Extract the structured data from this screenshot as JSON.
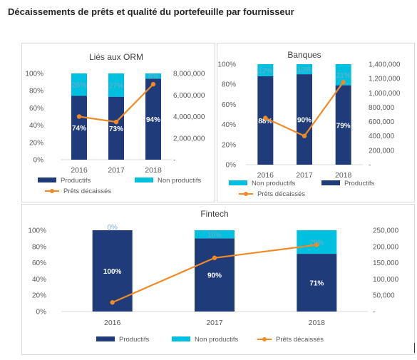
{
  "page_title": "Décaissements de prêts et qualité du portefeuille par fournisseur",
  "colors": {
    "productive": "#1f3b7a",
    "non_productive": "#00c0e0",
    "line": "#f08a24",
    "axis_text": "#595959"
  },
  "chart_data": [
    {
      "type": "bar",
      "title": "Liés aux ORM",
      "categories": [
        "2016",
        "2017",
        "2018"
      ],
      "y_left_ticks": [
        "100%",
        "80%",
        "60%",
        "40%",
        "20%",
        "0%"
      ],
      "y_right_ticks": [
        "8,000,000",
        "6,000,000",
        "4,000,000",
        "2,000,000",
        "-"
      ],
      "y_right_range": [
        0,
        8000000
      ],
      "series": [
        {
          "name": "Productifs",
          "kind": "stacked-bar",
          "values": [
            74,
            73,
            94
          ],
          "labels": [
            "74%",
            "73%",
            "94%"
          ]
        },
        {
          "name": "Non productifs",
          "kind": "stacked-bar",
          "values": [
            26,
            27,
            6
          ],
          "labels": [
            "26%",
            "27%",
            "6%"
          ]
        },
        {
          "name": "Prêts décaissés",
          "kind": "line",
          "values": [
            4000000,
            3500000,
            7000000
          ]
        }
      ],
      "legend": [
        "Productifs",
        "Non productifs",
        "Prêts décaissés"
      ]
    },
    {
      "type": "bar",
      "title": "Banques",
      "categories": [
        "2016",
        "2017",
        "2018"
      ],
      "y_left_ticks": [
        "100%",
        "80%",
        "60%",
        "40%",
        "20%",
        "0%"
      ],
      "y_right_ticks": [
        "1,400,000",
        "1,200,000",
        "1,000,000",
        "800,000",
        "600,000",
        "400,000",
        "200,000",
        "-"
      ],
      "y_right_range": [
        0,
        1400000
      ],
      "series": [
        {
          "name": "Productifs",
          "kind": "stacked-bar",
          "values": [
            88,
            90,
            79
          ],
          "labels": [
            "88%",
            "90%",
            "79%"
          ]
        },
        {
          "name": "Non productifs",
          "kind": "stacked-bar",
          "values": [
            12,
            10,
            21
          ],
          "labels": [
            "12%",
            "10%",
            "21%"
          ]
        },
        {
          "name": "Prêts décaissés",
          "kind": "line",
          "values": [
            650000,
            400000,
            1150000
          ]
        }
      ],
      "legend": [
        "Non productifs",
        "Productifs",
        "Prêts décaissés"
      ]
    },
    {
      "type": "bar",
      "title": "Fintech",
      "categories": [
        "2016",
        "2017",
        "2018"
      ],
      "y_left_ticks": [
        "100%",
        "80%",
        "60%",
        "40%",
        "20%",
        "0%"
      ],
      "y_right_ticks": [
        "250,000",
        "200,000",
        "150,000",
        "100,000",
        "50,000",
        "-"
      ],
      "y_right_range": [
        0,
        250000
      ],
      "series": [
        {
          "name": "Productifs",
          "kind": "stacked-bar",
          "values": [
            100,
            90,
            71
          ],
          "labels": [
            "100%",
            "90%",
            "71%"
          ]
        },
        {
          "name": "Non productifs",
          "kind": "stacked-bar",
          "values": [
            0,
            10,
            29
          ],
          "labels": [
            "0%",
            "10%",
            "29%"
          ]
        },
        {
          "name": "Prêts décaissés",
          "kind": "line",
          "values": [
            28000,
            165000,
            205000
          ]
        }
      ],
      "legend": [
        "Productifs",
        "Non productifs",
        "Prêts décaissés"
      ]
    }
  ]
}
